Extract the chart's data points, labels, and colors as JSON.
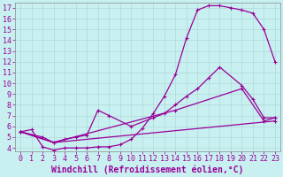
{
  "xlabel": "Windchill (Refroidissement éolien,°C)",
  "bg_color": "#c8f0f0",
  "grid_color": "#b0d8d8",
  "line_color": "#990099",
  "xlim": [
    -0.5,
    23.5
  ],
  "ylim": [
    3.7,
    17.5
  ],
  "xticks": [
    0,
    1,
    2,
    3,
    4,
    5,
    6,
    7,
    8,
    9,
    10,
    11,
    12,
    13,
    14,
    15,
    16,
    17,
    18,
    19,
    20,
    21,
    22,
    23
  ],
  "yticks": [
    4,
    5,
    6,
    7,
    8,
    9,
    10,
    11,
    12,
    13,
    14,
    15,
    16,
    17
  ],
  "line1_x": [
    0,
    1,
    2,
    3,
    4,
    5,
    6,
    7,
    8,
    9,
    10,
    11,
    12,
    13,
    14,
    15,
    16,
    17,
    18,
    19,
    20,
    21,
    22,
    23
  ],
  "line1_y": [
    5.5,
    5.7,
    4.1,
    3.8,
    4.0,
    4.0,
    4.0,
    4.1,
    4.1,
    4.3,
    4.8,
    5.8,
    7.2,
    8.8,
    10.8,
    14.2,
    16.8,
    17.2,
    17.2,
    17.0,
    16.8,
    16.5,
    15.0,
    12.0
  ],
  "line2_x": [
    0,
    2,
    3,
    4,
    5,
    6,
    7,
    8,
    10,
    12,
    13,
    14,
    15,
    16,
    17,
    18,
    20,
    21,
    22,
    23
  ],
  "line2_y": [
    5.5,
    5.0,
    4.5,
    4.8,
    5.0,
    5.2,
    7.5,
    7.0,
    6.0,
    6.8,
    7.2,
    8.0,
    8.8,
    9.5,
    10.5,
    11.5,
    9.8,
    8.5,
    6.8,
    6.8
  ],
  "line3_x": [
    0,
    3,
    14,
    20,
    22,
    23
  ],
  "line3_y": [
    5.5,
    4.5,
    7.5,
    9.5,
    6.5,
    6.8
  ],
  "line4_x": [
    0,
    3,
    23
  ],
  "line4_y": [
    5.5,
    4.5,
    6.5
  ],
  "xlabel_fontsize": 7,
  "tick_fontsize": 6,
  "marker": "+",
  "markersize": 3,
  "linewidth": 0.9
}
